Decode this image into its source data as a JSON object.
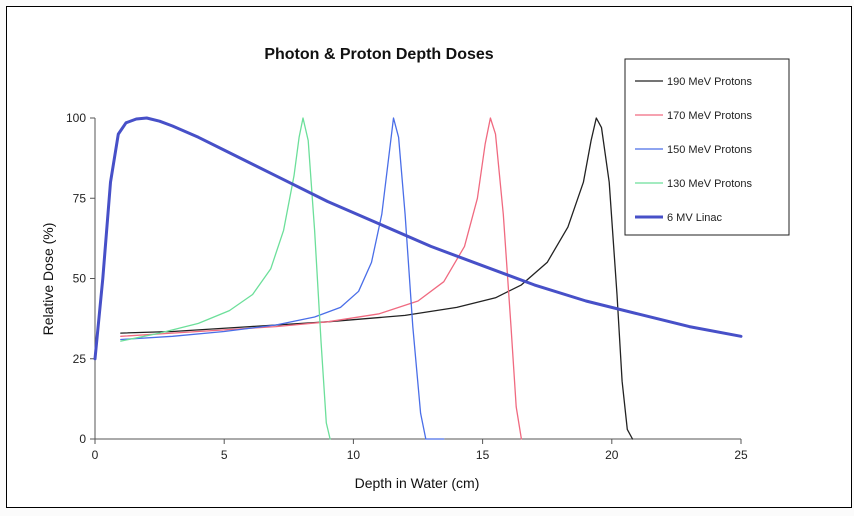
{
  "chart_data": {
    "type": "line",
    "title": "Photon & Proton Depth Doses",
    "xlabel": "Depth in Water (cm)",
    "ylabel": "Relative Dose (%)",
    "xlim": [
      0,
      25
    ],
    "ylim": [
      0,
      100
    ],
    "xticks": [
      "0",
      "5",
      "10",
      "15",
      "20",
      "25"
    ],
    "yticks": [
      "0",
      "25",
      "50",
      "75",
      "100"
    ],
    "grid": false,
    "legend_position": "top-right",
    "series": [
      {
        "name": "190 MeV Protons",
        "color": "#222222",
        "points": [
          [
            1,
            33
          ],
          [
            3,
            33.5
          ],
          [
            6,
            35
          ],
          [
            9,
            36.5
          ],
          [
            12,
            38.5
          ],
          [
            14,
            41
          ],
          [
            15.5,
            44
          ],
          [
            16.5,
            48
          ],
          [
            17.5,
            55
          ],
          [
            18.3,
            66
          ],
          [
            18.9,
            80
          ],
          [
            19.2,
            93
          ],
          [
            19.4,
            100
          ],
          [
            19.6,
            97
          ],
          [
            19.9,
            80
          ],
          [
            20.2,
            45
          ],
          [
            20.4,
            18
          ],
          [
            20.6,
            3
          ],
          [
            20.8,
            0
          ]
        ]
      },
      {
        "name": "170 MeV Protons",
        "color": "#f06a80",
        "points": [
          [
            1,
            32
          ],
          [
            3,
            33
          ],
          [
            5,
            34
          ],
          [
            7,
            35
          ],
          [
            9,
            36.5
          ],
          [
            11,
            39
          ],
          [
            12.5,
            43
          ],
          [
            13.5,
            49
          ],
          [
            14.3,
            60
          ],
          [
            14.8,
            75
          ],
          [
            15.1,
            92
          ],
          [
            15.3,
            100
          ],
          [
            15.5,
            95
          ],
          [
            15.8,
            70
          ],
          [
            16.1,
            35
          ],
          [
            16.3,
            10
          ],
          [
            16.5,
            0
          ]
        ]
      },
      {
        "name": "150 MeV Protons",
        "color": "#4a6ee8",
        "points": [
          [
            1,
            31
          ],
          [
            3,
            32
          ],
          [
            5,
            33.5
          ],
          [
            7,
            35.5
          ],
          [
            8.5,
            38
          ],
          [
            9.5,
            41
          ],
          [
            10.2,
            46
          ],
          [
            10.7,
            55
          ],
          [
            11.1,
            70
          ],
          [
            11.4,
            90
          ],
          [
            11.55,
            100
          ],
          [
            11.75,
            94
          ],
          [
            12.0,
            70
          ],
          [
            12.3,
            35
          ],
          [
            12.6,
            8
          ],
          [
            12.8,
            0
          ],
          [
            13.5,
            0
          ]
        ]
      },
      {
        "name": "130 MeV Protons",
        "color": "#6cdf9a",
        "points": [
          [
            1,
            30.5
          ],
          [
            2.5,
            33
          ],
          [
            4,
            36
          ],
          [
            5.2,
            40
          ],
          [
            6.1,
            45
          ],
          [
            6.8,
            53
          ],
          [
            7.3,
            65
          ],
          [
            7.7,
            82
          ],
          [
            7.9,
            94
          ],
          [
            8.05,
            100
          ],
          [
            8.25,
            93
          ],
          [
            8.5,
            65
          ],
          [
            8.75,
            30
          ],
          [
            8.95,
            5
          ],
          [
            9.1,
            0
          ]
        ]
      },
      {
        "name": "6 MV Linac",
        "color": "#4750c8",
        "points": [
          [
            0,
            25
          ],
          [
            0.3,
            50
          ],
          [
            0.6,
            80
          ],
          [
            0.9,
            95
          ],
          [
            1.2,
            98.5
          ],
          [
            1.6,
            99.7
          ],
          [
            2.0,
            100
          ],
          [
            2.5,
            99
          ],
          [
            3,
            97.5
          ],
          [
            4,
            94
          ],
          [
            5,
            90
          ],
          [
            7,
            82
          ],
          [
            9,
            74
          ],
          [
            11,
            67
          ],
          [
            13,
            60
          ],
          [
            15,
            54
          ],
          [
            17,
            48
          ],
          [
            19,
            43
          ],
          [
            21,
            39
          ],
          [
            23,
            35
          ],
          [
            25,
            32
          ]
        ]
      }
    ]
  }
}
